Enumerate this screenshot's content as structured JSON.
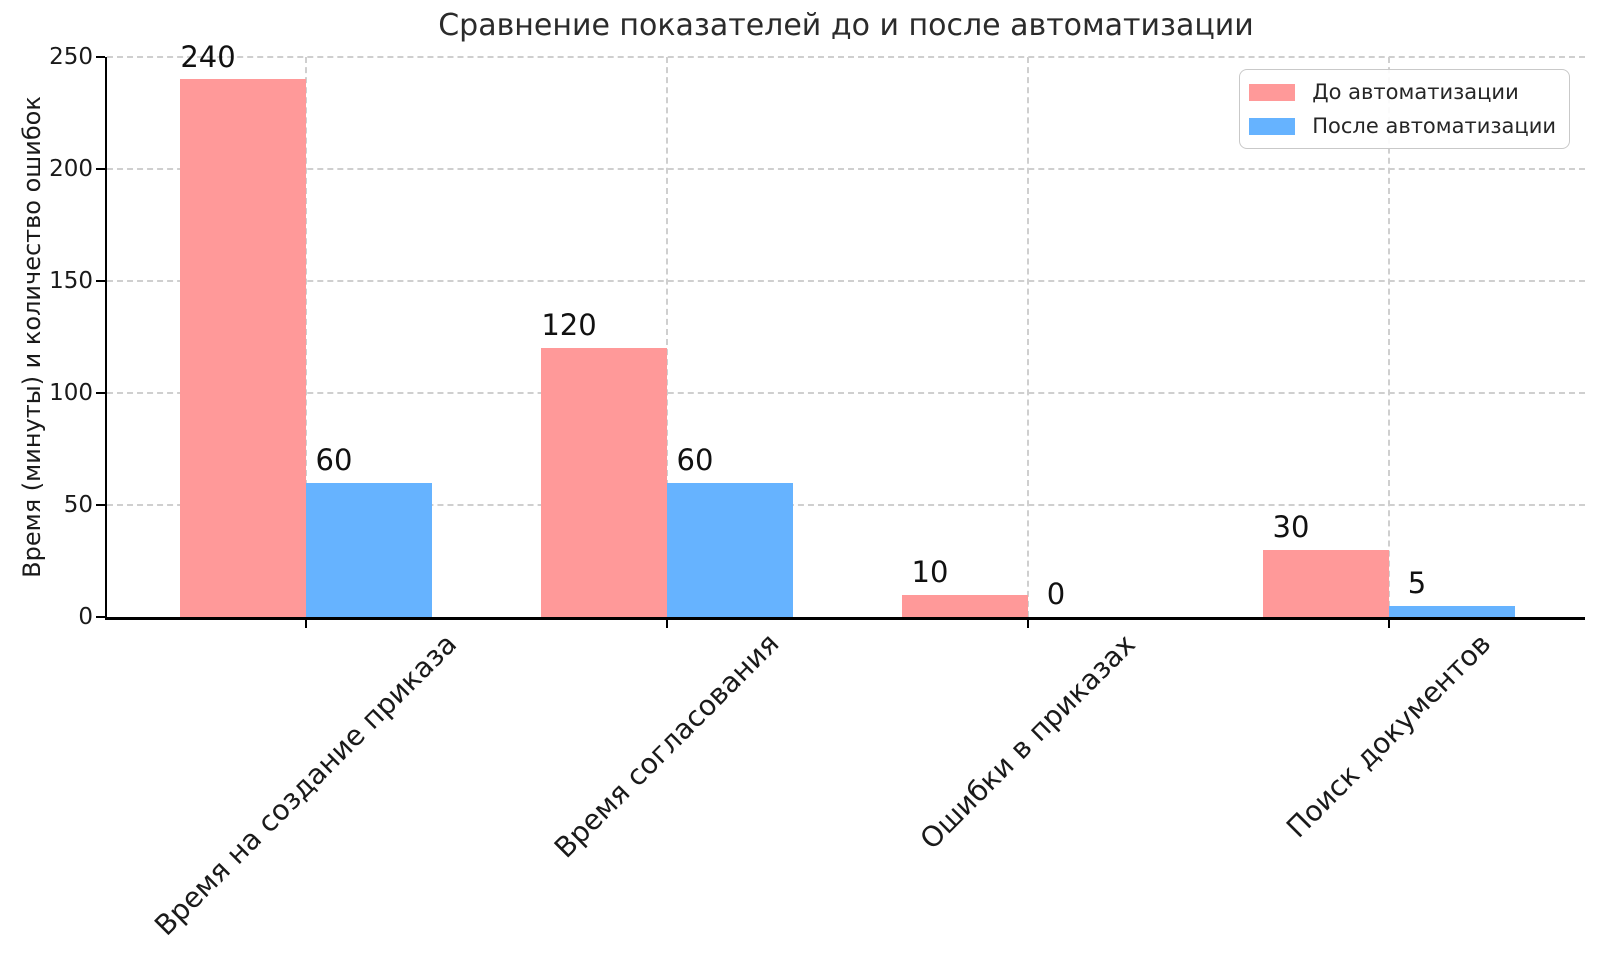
{
  "chart_data": {
    "type": "bar",
    "title": "Сравнение показателей до и после автоматизации",
    "xlabel": "",
    "ylabel": "Время (минуты) и количество ошибок",
    "categories": [
      "Время на создание приказа",
      "Время согласования",
      "Ошибки в приказах",
      "Поиск документов"
    ],
    "series": [
      {
        "name": "До автоматизации",
        "color": "#FF9999",
        "values": [
          240,
          120,
          10,
          30
        ]
      },
      {
        "name": "После автоматизации",
        "color": "#66B3FF",
        "values": [
          60,
          60,
          0,
          5
        ]
      }
    ],
    "ylim": [
      0,
      250
    ],
    "yticks": [
      0,
      50,
      100,
      150,
      200,
      250
    ],
    "grid": {
      "style": "dashed",
      "color": "#cfcfcf",
      "axes": "both"
    },
    "legend": {
      "position": "upper-right"
    },
    "value_labels_shown": true,
    "axis_color": "#000000",
    "text_color": "#262626"
  }
}
